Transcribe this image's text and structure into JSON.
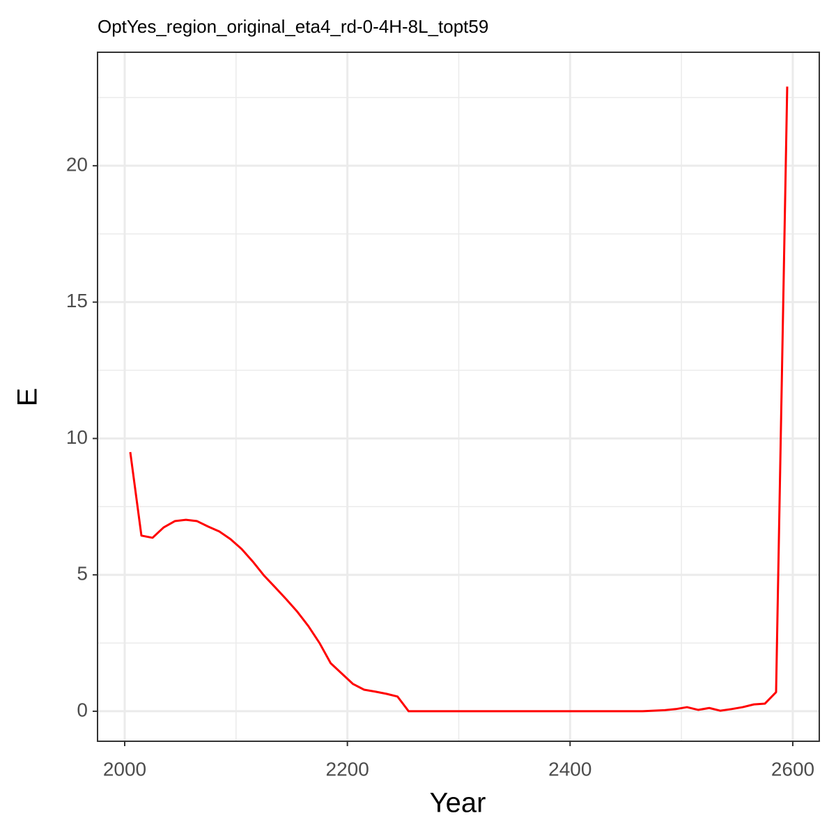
{
  "chart_data": {
    "type": "line",
    "title": "OptYes_region_original_eta4_rd-0-4H-8L_topt59",
    "x_label": "Year",
    "y_label": "E",
    "x": [
      2005,
      2015,
      2025,
      2035,
      2045,
      2055,
      2065,
      2075,
      2085,
      2095,
      2105,
      2115,
      2125,
      2135,
      2145,
      2155,
      2165,
      2175,
      2185,
      2195,
      2205,
      2215,
      2225,
      2235,
      2245,
      2255,
      2265,
      2275,
      2285,
      2295,
      2305,
      2315,
      2325,
      2335,
      2345,
      2355,
      2365,
      2375,
      2385,
      2395,
      2405,
      2415,
      2425,
      2435,
      2445,
      2455,
      2465,
      2475,
      2485,
      2495,
      2505,
      2515,
      2525,
      2535,
      2545,
      2555,
      2565,
      2575,
      2585,
      2595
    ],
    "series": [
      {
        "name": "E",
        "color": "#ff0000",
        "values": [
          9.5,
          6.44,
          6.36,
          6.74,
          6.97,
          7.02,
          6.97,
          6.77,
          6.59,
          6.31,
          5.95,
          5.49,
          4.98,
          4.55,
          4.11,
          3.65,
          3.12,
          2.5,
          1.76,
          1.38,
          1.0,
          0.79,
          0.72,
          0.64,
          0.54,
          0,
          0,
          0,
          0,
          0,
          0,
          0,
          0,
          0,
          0,
          0,
          0,
          0,
          0,
          0,
          0,
          0,
          0,
          0,
          0,
          0,
          0,
          0.02,
          0.04,
          0.08,
          0.15,
          0.05,
          0.12,
          0.02,
          0.08,
          0.15,
          0.25,
          0.28,
          0.7,
          22.9
        ]
      }
    ],
    "xlim": [
      1975.6,
      2623.8
    ],
    "ylim": [
      -1.1,
      24.16
    ],
    "xticks": [
      2000,
      2200,
      2400,
      2600
    ],
    "yticks": [
      0,
      5,
      10,
      15,
      20
    ],
    "xminor": [
      2100,
      2300,
      2500
    ],
    "yminor": [
      2.5,
      7.5,
      12.5,
      17.5,
      22.5
    ],
    "grid": true
  }
}
